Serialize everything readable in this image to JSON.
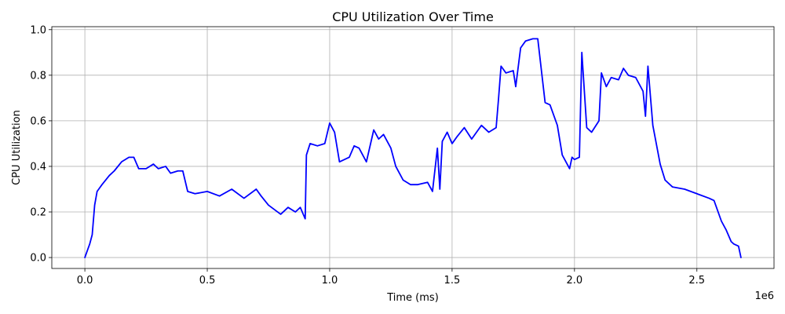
{
  "chart_data": {
    "type": "line",
    "title": "CPU Utilization Over Time",
    "xlabel": "Time (ms)",
    "ylabel": "CPU Utilization",
    "x_offset_text": "1e6",
    "xlim": [
      -0.135,
      2.815
    ],
    "ylim": [
      -0.048,
      1.013
    ],
    "x_ticks": [
      0.0,
      0.5,
      1.0,
      1.5,
      2.0,
      2.5
    ],
    "x_tick_labels": [
      "0.0",
      "0.5",
      "1.0",
      "1.5",
      "2.0",
      "2.5"
    ],
    "y_ticks": [
      0.0,
      0.2,
      0.4,
      0.6,
      0.8,
      1.0
    ],
    "y_tick_labels": [
      "0.0",
      "0.2",
      "0.4",
      "0.6",
      "0.8",
      "1.0"
    ],
    "grid": true,
    "series": [
      {
        "color": "#0000ff",
        "x": [
          0.0,
          0.01,
          0.02,
          0.03,
          0.04,
          0.05,
          0.07,
          0.1,
          0.12,
          0.15,
          0.18,
          0.2,
          0.22,
          0.25,
          0.28,
          0.3,
          0.33,
          0.35,
          0.38,
          0.4,
          0.42,
          0.45,
          0.5,
          0.55,
          0.6,
          0.65,
          0.7,
          0.72,
          0.75,
          0.8,
          0.83,
          0.86,
          0.88,
          0.9,
          0.905,
          0.92,
          0.95,
          0.98,
          1.0,
          1.02,
          1.04,
          1.08,
          1.1,
          1.12,
          1.15,
          1.18,
          1.2,
          1.22,
          1.25,
          1.27,
          1.3,
          1.33,
          1.36,
          1.4,
          1.42,
          1.44,
          1.45,
          1.46,
          1.48,
          1.5,
          1.52,
          1.55,
          1.58,
          1.6,
          1.62,
          1.65,
          1.68,
          1.69,
          1.7,
          1.72,
          1.75,
          1.76,
          1.78,
          1.8,
          1.83,
          1.85,
          1.88,
          1.9,
          1.93,
          1.95,
          1.98,
          1.99,
          2.0,
          2.02,
          2.03,
          2.05,
          2.07,
          2.1,
          2.11,
          2.13,
          2.15,
          2.18,
          2.2,
          2.22,
          2.25,
          2.28,
          2.29,
          2.3,
          2.32,
          2.35,
          2.37,
          2.4,
          2.45,
          2.5,
          2.55,
          2.57,
          2.6,
          2.62,
          2.64,
          2.65,
          2.67,
          2.68
        ],
        "y": [
          0.0,
          0.03,
          0.06,
          0.1,
          0.23,
          0.29,
          0.32,
          0.36,
          0.38,
          0.42,
          0.44,
          0.44,
          0.39,
          0.39,
          0.41,
          0.39,
          0.4,
          0.37,
          0.38,
          0.38,
          0.29,
          0.28,
          0.29,
          0.27,
          0.3,
          0.26,
          0.3,
          0.27,
          0.23,
          0.19,
          0.22,
          0.2,
          0.22,
          0.17,
          0.45,
          0.5,
          0.49,
          0.5,
          0.59,
          0.55,
          0.42,
          0.44,
          0.49,
          0.48,
          0.42,
          0.56,
          0.52,
          0.54,
          0.48,
          0.4,
          0.34,
          0.32,
          0.32,
          0.33,
          0.29,
          0.48,
          0.3,
          0.51,
          0.55,
          0.5,
          0.53,
          0.57,
          0.52,
          0.55,
          0.58,
          0.55,
          0.57,
          0.7,
          0.84,
          0.81,
          0.82,
          0.75,
          0.92,
          0.95,
          0.96,
          0.96,
          0.68,
          0.67,
          0.58,
          0.45,
          0.39,
          0.44,
          0.43,
          0.44,
          0.9,
          0.57,
          0.55,
          0.6,
          0.81,
          0.75,
          0.79,
          0.78,
          0.83,
          0.8,
          0.79,
          0.73,
          0.62,
          0.84,
          0.58,
          0.41,
          0.34,
          0.31,
          0.3,
          0.28,
          0.26,
          0.25,
          0.16,
          0.12,
          0.07,
          0.06,
          0.05,
          0.0
        ]
      }
    ]
  }
}
